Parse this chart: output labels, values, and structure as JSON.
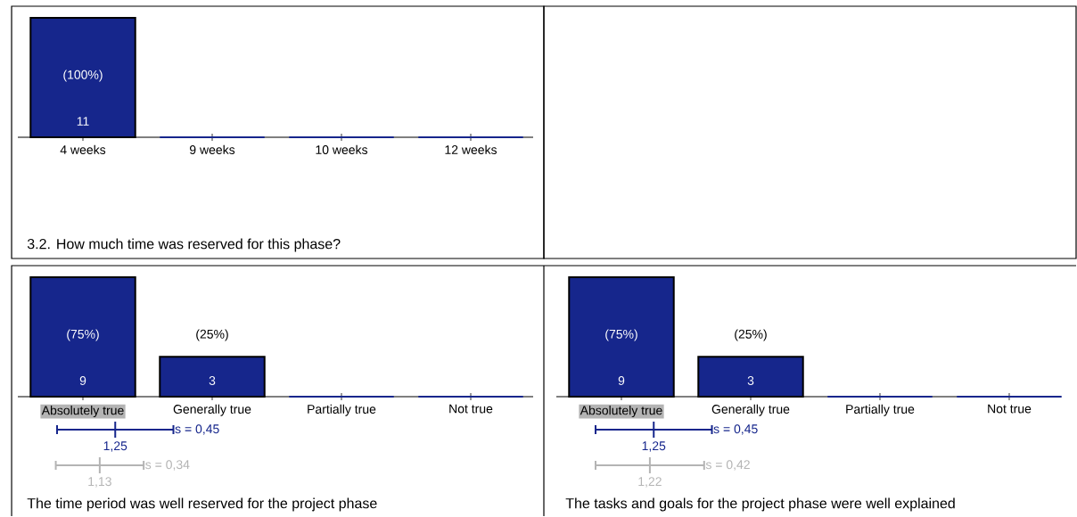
{
  "chart_data": [
    {
      "type": "bar",
      "title": "3.2. How much time was reserved for this phase?",
      "categories": [
        "4 weeks",
        "9 weeks",
        "10 weeks",
        "12 weeks"
      ],
      "values": [
        11,
        0,
        0,
        0
      ],
      "color": "#16268c",
      "ylim": [
        0,
        11
      ],
      "tick_labels": "x",
      "value_labels": [
        "11",
        null,
        null,
        null
      ],
      "annotations": [
        "(100%)"
      ]
    },
    {
      "type": "bar",
      "title": "The time period was well reserved for the project phase",
      "categories": [
        "Absolutely true",
        "Generally true",
        "Partially true",
        "Not true"
      ],
      "values": [
        9,
        3,
        0,
        0
      ],
      "color": "#16268c",
      "ylim": [
        0,
        9
      ],
      "tick_labels": "x",
      "value_labels": [
        "9",
        "3",
        null,
        null
      ],
      "annotations": [
        "(75%)",
        "(25%)",
        "1,25",
        "s = 0,45",
        "1,13",
        "s = 0,34"
      ]
    },
    {
      "type": "bar",
      "title": "The tasks and goals for the project phase were well explained",
      "categories": [
        "Absolutely true",
        "Generally true",
        "Partially true",
        "Not true"
      ],
      "values": [
        9,
        3,
        0,
        0
      ],
      "color": "#16268c",
      "ylim": [
        0,
        9
      ],
      "tick_labels": "x",
      "value_labels": [
        "9",
        "3",
        null,
        null
      ],
      "annotations": [
        "(75%)",
        "(25%)",
        "1,25",
        "s = 0,45",
        "1,22",
        "s = 0,42"
      ]
    }
  ]
}
